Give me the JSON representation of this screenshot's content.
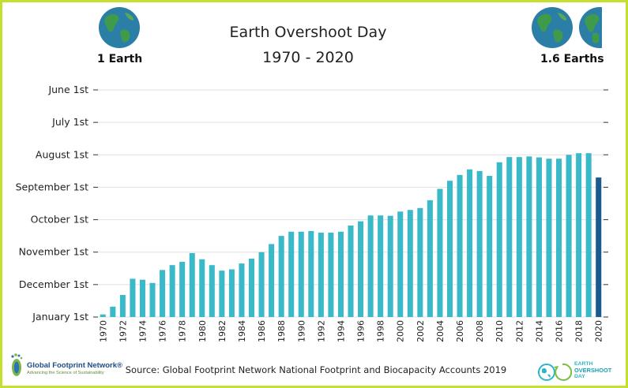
{
  "header": {
    "title_line1": "Earth Overshoot Day",
    "title_line2": "1970 - 2020",
    "left_globe_label": "1 Earth",
    "right_globe_label": "1.6 Earths"
  },
  "footer": {
    "source": "Source: Global Footprint Network National Footprint and Biocapacity Accounts 2019",
    "left_logo_name": "Global Footprint Network®",
    "left_logo_tagline": "Advancing the Science of Sustainability",
    "right_logo_line1": "EARTH",
    "right_logo_line2": "OVERSHOOT",
    "right_logo_line3": "DAY"
  },
  "colors": {
    "bar": "#3ab9c8",
    "bar_highlight": "#1a5a8c",
    "frame": "#c5df2f",
    "grid": "#e1e1e1",
    "axis": "#333333"
  },
  "icons": [
    "earth-globe-icon",
    "footprint-icon",
    "earth-cycle-icon"
  ],
  "chart_data": {
    "type": "bar",
    "title": "Earth Overshoot Day",
    "subtitle": "1970 - 2020",
    "source": "Source: Global Footprint Network National Footprint and Biocapacity Accounts 2019",
    "y_axis_ticks": [
      "June 1st",
      "July 1st",
      "August 1st",
      "September 1st",
      "October 1st",
      "November 1st",
      "December 1st",
      "January 1st"
    ],
    "y_axis_reversed": true,
    "y_axis_range_months": [
      0,
      7
    ],
    "y_axis_note": "value = months before January 1st",
    "categories": [
      1970,
      1971,
      1972,
      1973,
      1974,
      1975,
      1976,
      1977,
      1978,
      1979,
      1980,
      1981,
      1982,
      1983,
      1984,
      1985,
      1986,
      1987,
      1988,
      1989,
      1990,
      1991,
      1992,
      1993,
      1994,
      1995,
      1996,
      1997,
      1998,
      1999,
      2000,
      2001,
      2002,
      2003,
      2004,
      2005,
      2006,
      2007,
      2008,
      2009,
      2010,
      2011,
      2012,
      2013,
      2014,
      2015,
      2016,
      2017,
      2018,
      2019,
      2020
    ],
    "x_tick_labels": [
      "1970",
      "1972",
      "1974",
      "1976",
      "1978",
      "1980",
      "1982",
      "1984",
      "1986",
      "1988",
      "1990",
      "1992",
      "1994",
      "1996",
      "1998",
      "2000",
      "2002",
      "2004",
      "2006",
      "2008",
      "2010",
      "2012",
      "2014",
      "2016",
      "2018",
      "2020"
    ],
    "values": [
      0.08,
      0.32,
      0.68,
      1.18,
      1.15,
      1.05,
      1.45,
      1.6,
      1.7,
      1.97,
      1.78,
      1.6,
      1.43,
      1.47,
      1.65,
      1.8,
      2.0,
      2.25,
      2.5,
      2.63,
      2.63,
      2.65,
      2.6,
      2.6,
      2.63,
      2.82,
      2.95,
      3.13,
      3.13,
      3.12,
      3.25,
      3.3,
      3.36,
      3.6,
      3.95,
      4.2,
      4.38,
      4.55,
      4.5,
      4.35,
      4.77,
      4.93,
      4.93,
      4.95,
      4.92,
      4.88,
      4.88,
      5.0,
      5.05,
      5.05,
      4.3
    ],
    "highlight_category": 2020,
    "grid": true
  }
}
